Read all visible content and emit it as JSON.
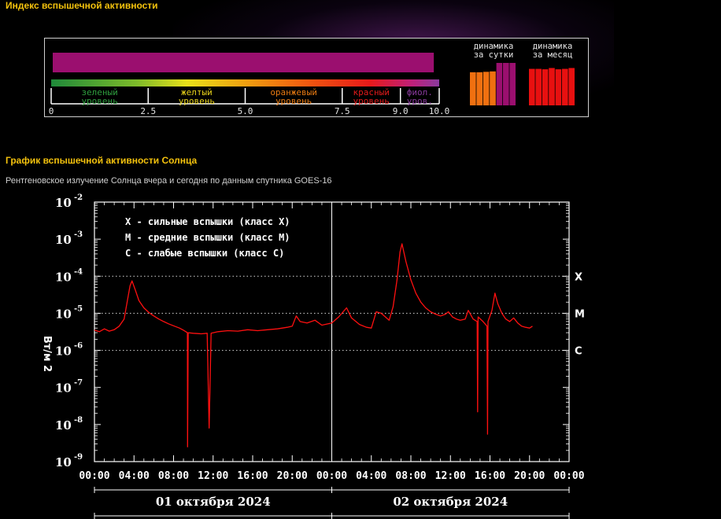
{
  "page": {
    "index_heading": "Индекс вспышечной активности",
    "chart_heading": "График вспышечной активности Солнца",
    "chart_subtitle": "Рентгеновское излучение Солнца вчера и сегодня по данным спутника GOES-16"
  },
  "flare_index": {
    "value": 9.8,
    "scale_max": 10.0,
    "bar_color": "#9b0f6f",
    "tick_labels": [
      "0",
      "2.5",
      "5.0",
      "7.5",
      "9.0",
      "10.0"
    ],
    "tick_values": [
      0,
      2.5,
      5.0,
      7.5,
      9.0,
      10.0
    ],
    "levels": [
      {
        "line1": "зеленый",
        "line2": "уровень",
        "from": 0,
        "to": 2.5,
        "color": "#2e9e3e"
      },
      {
        "line1": "желтый",
        "line2": "уровень",
        "from": 2.5,
        "to": 5.0,
        "color": "#e8d21a"
      },
      {
        "line1": "оранжевый",
        "line2": "уровень",
        "from": 5.0,
        "to": 7.5,
        "color": "#e87a12"
      },
      {
        "line1": "красный",
        "line2": "уровень",
        "from": 7.5,
        "to": 9.0,
        "color": "#e21a1a"
      },
      {
        "line1": "фиол.",
        "line2": "уров.",
        "from": 9.0,
        "to": 10.0,
        "color": "#8a3a9e"
      }
    ],
    "daily_dynamics": {
      "label1": "динамика",
      "label2": "за сутки",
      "values": [
        7.8,
        7.8,
        7.9,
        8.0,
        10.0,
        10.0,
        10.0
      ],
      "colors": [
        "#f07010",
        "#f07010",
        "#f07010",
        "#f07010",
        "#9b0f6f",
        "#9b0f6f",
        "#9b0f6f"
      ]
    },
    "monthly_dynamics": {
      "label1": "динамика",
      "label2": "за месяц",
      "values": [
        8.6,
        8.6,
        8.5,
        8.8,
        8.5,
        8.6,
        8.8
      ],
      "colors": [
        "#e81010",
        "#e81010",
        "#e81010",
        "#e81010",
        "#e81010",
        "#e81010",
        "#e81010"
      ]
    }
  },
  "chart_data": {
    "type": "line",
    "y_scale": "log",
    "ylim_exponents": [
      -9,
      -2
    ],
    "ylabel": "Вт/м 2",
    "y_tick_exponents": [
      -9,
      -8,
      -7,
      -6,
      -5,
      -4,
      -3,
      -2
    ],
    "x_tick_labels": [
      "00:00",
      "04:00",
      "08:00",
      "12:00",
      "16:00",
      "20:00",
      "00:00",
      "04:00",
      "08:00",
      "12:00",
      "16:00",
      "20:00",
      "00:00"
    ],
    "x_range_hours": [
      0,
      48
    ],
    "day_labels": [
      "01 октября 2024",
      "02 октября 2024"
    ],
    "class_lines": [
      {
        "label": "X",
        "exp": -4
      },
      {
        "label": "M",
        "exp": -5
      },
      {
        "label": "C",
        "exp": -6
      }
    ],
    "legend": [
      "X - сильные вспышки (класс X)",
      "M - средние вспышки (класс M)",
      "C - слабые вспышки (класс C)"
    ],
    "series_color": "#ff1010",
    "series": [
      {
        "points": [
          [
            0.0,
            3.5e-06
          ],
          [
            0.5,
            3.2e-06
          ],
          [
            1.0,
            3.8e-06
          ],
          [
            1.5,
            3.3e-06
          ],
          [
            2.0,
            3.6e-06
          ],
          [
            2.5,
            4.5e-06
          ],
          [
            3.0,
            7e-06
          ],
          [
            3.3,
            2e-05
          ],
          [
            3.6,
            5.5e-05
          ],
          [
            3.8,
            7.5e-05
          ],
          [
            4.1,
            4.5e-05
          ],
          [
            4.5,
            2.2e-05
          ],
          [
            5.0,
            1.4e-05
          ],
          [
            5.5,
            1.05e-05
          ],
          [
            6.0,
            8.5e-06
          ],
          [
            6.5,
            7e-06
          ],
          [
            7.0,
            6e-06
          ],
          [
            7.5,
            5.2e-06
          ],
          [
            8.0,
            4.6e-06
          ],
          [
            8.6,
            4e-06
          ],
          [
            9.0,
            3.5e-06
          ],
          [
            9.4,
            3e-06
          ],
          [
            9.42,
            2.5e-09
          ],
          [
            9.48,
            3e-06
          ],
          [
            10.0,
            2.9e-06
          ],
          [
            10.8,
            2.8e-06
          ],
          [
            11.4,
            2.9e-06
          ],
          [
            11.6,
            8e-09
          ],
          [
            11.8,
            2.9e-06
          ],
          [
            12.5,
            3.2e-06
          ],
          [
            13.5,
            3.4e-06
          ],
          [
            14.5,
            3.3e-06
          ],
          [
            15.5,
            3.6e-06
          ],
          [
            16.5,
            3.4e-06
          ],
          [
            17.5,
            3.6e-06
          ],
          [
            18.5,
            3.8e-06
          ],
          [
            19.5,
            4.2e-06
          ],
          [
            20.0,
            4.5e-06
          ],
          [
            20.4,
            8.5e-06
          ],
          [
            20.8,
            6e-06
          ],
          [
            21.5,
            5.5e-06
          ],
          [
            22.3,
            6.5e-06
          ],
          [
            23.0,
            4.8e-06
          ],
          [
            24.0,
            5.5e-06
          ],
          [
            24.7,
            8e-06
          ],
          [
            25.5,
            1.4e-05
          ],
          [
            26.0,
            7.5e-06
          ],
          [
            26.8,
            5e-06
          ],
          [
            27.5,
            4.2e-06
          ],
          [
            28.0,
            4e-06
          ],
          [
            28.5,
            1.1e-05
          ],
          [
            29.0,
            1e-05
          ],
          [
            29.8,
            6.5e-06
          ],
          [
            30.2,
            1.5e-05
          ],
          [
            30.6,
            8e-05
          ],
          [
            30.9,
            0.00045
          ],
          [
            31.1,
            0.00075
          ],
          [
            31.5,
            0.00025
          ],
          [
            32.0,
            8e-05
          ],
          [
            32.5,
            3.5e-05
          ],
          [
            33.0,
            2e-05
          ],
          [
            33.5,
            1.4e-05
          ],
          [
            34.0,
            1.1e-05
          ],
          [
            34.5,
            9.5e-06
          ],
          [
            35.0,
            8.5e-06
          ],
          [
            35.5,
            9.5e-06
          ],
          [
            35.8,
            1.1e-05
          ],
          [
            36.2,
            8e-06
          ],
          [
            36.6,
            7e-06
          ],
          [
            37.0,
            6.5e-06
          ],
          [
            37.5,
            7e-06
          ],
          [
            37.8,
            1.2e-05
          ],
          [
            38.3,
            7e-06
          ],
          [
            38.7,
            6e-06
          ],
          [
            38.75,
            2.2e-08
          ],
          [
            38.8,
            8e-06
          ],
          [
            39.3,
            6e-06
          ],
          [
            39.7,
            4.5e-06
          ],
          [
            39.75,
            5.5e-09
          ],
          [
            39.8,
            6e-06
          ],
          [
            40.2,
            1.2e-05
          ],
          [
            40.5,
            3.5e-05
          ],
          [
            40.8,
            1.8e-05
          ],
          [
            41.2,
            1e-05
          ],
          [
            41.6,
            7e-06
          ],
          [
            42.0,
            6e-06
          ],
          [
            42.4,
            7.5e-06
          ],
          [
            42.8,
            5.5e-06
          ],
          [
            43.2,
            4.5e-06
          ],
          [
            43.6,
            4.2e-06
          ],
          [
            44.0,
            4e-06
          ],
          [
            44.3,
            4.5e-06
          ]
        ]
      }
    ]
  }
}
